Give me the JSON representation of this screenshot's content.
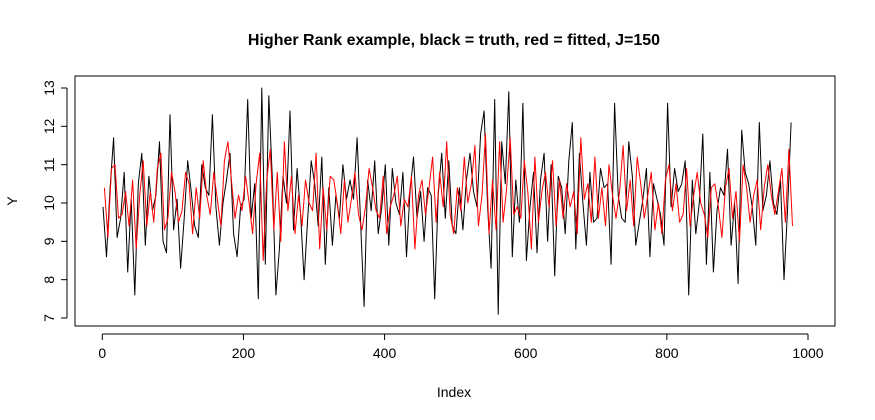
{
  "chart_data": {
    "type": "line",
    "title": "Higher Rank example, black = truth, red = fitted, J=150",
    "xlabel": "Index",
    "ylabel": "Y",
    "xlim": [
      1,
      1000
    ],
    "ylim": [
      7,
      13
    ],
    "x_ticks": [
      0,
      200,
      400,
      600,
      800,
      1000
    ],
    "y_ticks": [
      7,
      8,
      9,
      10,
      11,
      12,
      13
    ],
    "grid": false,
    "legend": "none",
    "series": [
      {
        "color": "#000000",
        "x_start": 1,
        "x_step": 5,
        "values": [
          9.9,
          8.6,
          10.4,
          11.7,
          9.1,
          9.6,
          10.8,
          8.2,
          10.1,
          7.6,
          10.5,
          11.3,
          8.9,
          10.7,
          9.8,
          10.2,
          11.6,
          9.0,
          8.7,
          12.3,
          9.3,
          10.1,
          8.3,
          9.6,
          11.1,
          10.3,
          9.4,
          9.1,
          11.0,
          10.4,
          10.2,
          12.3,
          9.9,
          8.9,
          10.0,
          10.6,
          11.3,
          9.2,
          8.6,
          9.9,
          10.1,
          12.7,
          9.6,
          10.5,
          7.5,
          13.0,
          8.4,
          12.8,
          10.6,
          7.6,
          8.8,
          10.7,
          10.0,
          12.4,
          9.3,
          10.9,
          9.7,
          8.0,
          9.6,
          11.1,
          10.5,
          9.4,
          11.2,
          8.4,
          10.4,
          8.9,
          10.2,
          9.6,
          11.0,
          10.1,
          10.6,
          10.1,
          11.7,
          9.5,
          7.3,
          10.6,
          9.8,
          11.1,
          9.2,
          9.9,
          11.0,
          8.9,
          10.9,
          10.0,
          9.7,
          10.8,
          8.6,
          10.3,
          11.2,
          9.6,
          10.3,
          9.0,
          10.4,
          10.2,
          7.5,
          10.2,
          11.3,
          9.6,
          11.1,
          9.4,
          9.2,
          10.4,
          9.3,
          10.6,
          11.3,
          10.3,
          9.9,
          11.8,
          12.4,
          9.9,
          8.3,
          12.7,
          7.1,
          11.6,
          10.5,
          12.9,
          8.6,
          10.6,
          9.5,
          12.6,
          8.5,
          9.9,
          10.8,
          8.7,
          10.6,
          11.3,
          9.0,
          11.0,
          8.1,
          10.7,
          10.4,
          9.2,
          11.1,
          12.1,
          8.8,
          11.3,
          10.0,
          8.9,
          10.8,
          9.5,
          9.6,
          10.9,
          10.4,
          10.5,
          8.4,
          12.6,
          10.2,
          9.6,
          9.5,
          11.6,
          10.7,
          8.9,
          9.5,
          10.1,
          10.9,
          8.6,
          10.5,
          10.1,
          9.7,
          8.9,
          12.6,
          9.9,
          10.9,
          10.3,
          10.5,
          11.1,
          7.6,
          10.6,
          9.2,
          10.0,
          11.8,
          8.4,
          10.8,
          8.2,
          9.8,
          10.4,
          10.2,
          11.4,
          8.9,
          10.0,
          7.9,
          11.9,
          10.8,
          10.5,
          9.9,
          8.9,
          12.1,
          9.8,
          10.2,
          11.1,
          10.0,
          9.7,
          10.6,
          8.0,
          9.8,
          12.1
        ]
      },
      {
        "color": "#ff0000",
        "x_start": 3,
        "x_step": 5,
        "values": [
          10.4,
          9.1,
          10.9,
          11.0,
          9.6,
          9.7,
          10.3,
          9.4,
          10.6,
          8.8,
          10.2,
          11.1,
          9.4,
          10.3,
          9.5,
          10.9,
          11.3,
          9.3,
          9.6,
          10.8,
          10.3,
          9.5,
          9.8,
          10.8,
          10.5,
          9.2,
          10.4,
          9.6,
          11.1,
          10.2,
          9.7,
          10.8,
          10.1,
          9.4,
          11.1,
          11.6,
          10.6,
          9.6,
          10.2,
          9.8,
          10.7,
          10.0,
          9.2,
          10.5,
          11.3,
          8.5,
          10.6,
          11.4,
          9.3,
          10.8,
          9.0,
          11.6,
          9.8,
          10.7,
          9.2,
          10.2,
          9.4,
          10.6,
          10.0,
          9.8,
          11.3,
          8.8,
          10.4,
          9.3,
          10.7,
          10.6,
          10.0,
          9.2,
          10.6,
          9.5,
          10.1,
          10.8,
          9.7,
          9.3,
          9.9,
          10.9,
          10.4,
          9.8,
          9.6,
          10.7,
          9.2,
          9.9,
          10.2,
          10.7,
          9.4,
          10.1,
          9.9,
          10.7,
          8.8,
          10.2,
          10.6,
          9.7,
          10.4,
          11.2,
          9.5,
          10.8,
          9.9,
          11.6,
          9.7,
          9.2,
          10.4,
          9.8,
          11.2,
          10.0,
          10.5,
          11.5,
          9.4,
          10.2,
          11.8,
          9.2,
          10.6,
          9.3,
          11.6,
          9.5,
          10.4,
          11.7,
          9.7,
          9.9,
          9.6,
          11.1,
          10.3,
          8.8,
          11.2,
          9.5,
          10.3,
          10.8,
          9.9,
          11.1,
          9.4,
          10.6,
          9.6,
          10.5,
          9.9,
          10.3,
          9.2,
          11.7,
          10.1,
          10.5,
          9.5,
          11.2,
          9.6,
          10.4,
          9.4,
          11.0,
          10.2,
          9.6,
          10.3,
          11.5,
          9.8,
          10.6,
          9.4,
          11.2,
          10.5,
          9.6,
          10.2,
          10.8,
          9.3,
          10.0,
          9.2,
          10.6,
          11.0,
          9.8,
          10.5,
          9.5,
          9.7,
          10.9,
          9.4,
          10.2,
          10.8,
          10.0,
          9.7,
          9.1,
          10.4,
          10.5,
          9.9,
          9.1,
          10.4,
          10.9,
          9.6,
          10.3,
          9.0,
          11.0,
          10.4,
          9.5,
          10.2,
          10.6,
          9.3,
          10.4,
          11.0,
          10.2,
          9.7,
          10.3,
          10.9,
          9.5,
          11.4,
          9.4
        ]
      }
    ]
  }
}
